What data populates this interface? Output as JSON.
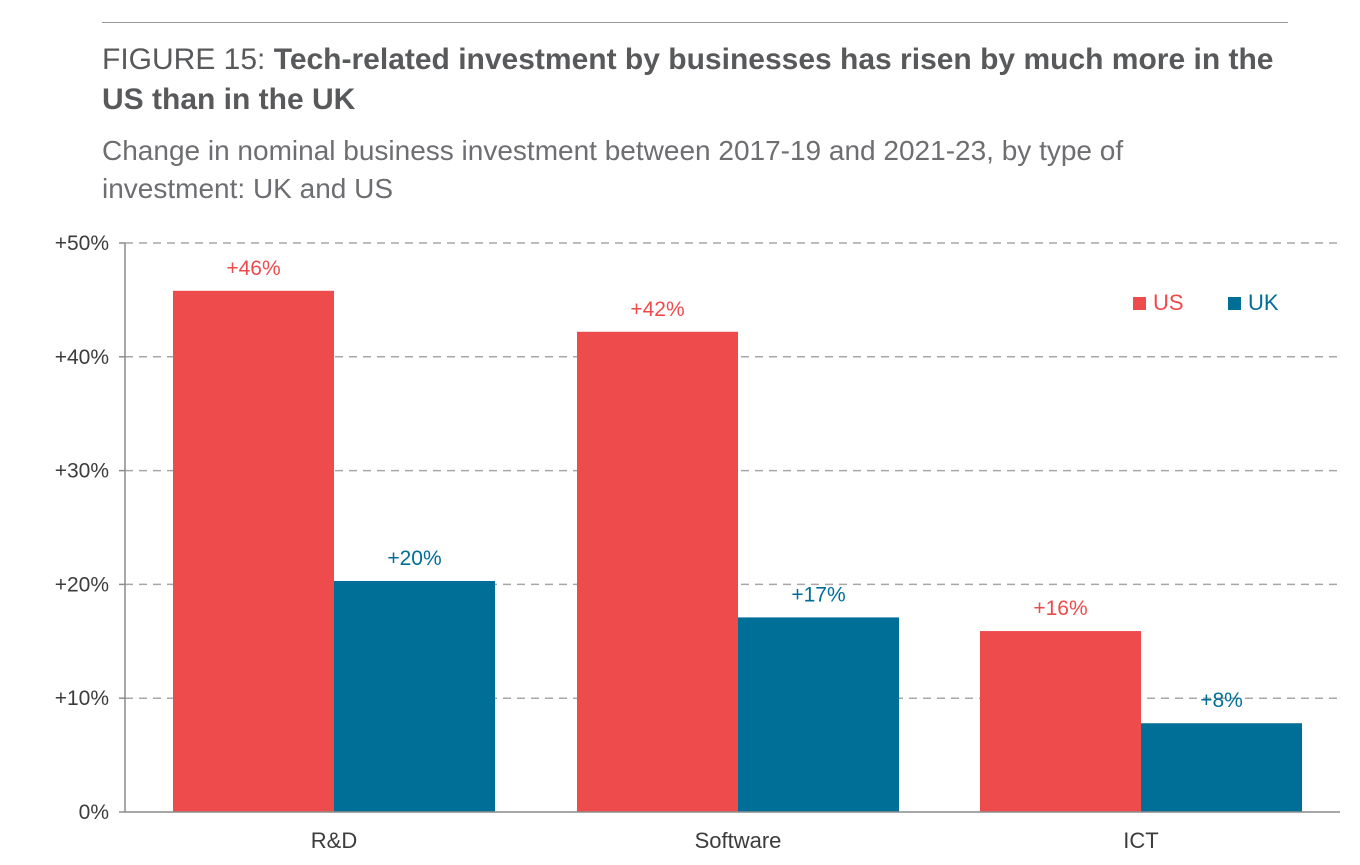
{
  "header": {
    "figure_label": "FIGURE 15:",
    "title_bold": "Tech-related investment by businesses has risen by much more in the US than in the UK"
  },
  "subtitle": "Change in nominal business investment between 2017-19 and 2021-23, by type of investment: UK and US",
  "colors": {
    "US": "#ee4b4d",
    "UK": "#006f98",
    "grid": "#a7a7a7",
    "axis": "#8c8c8c"
  },
  "chart_data": {
    "type": "bar",
    "title": "Tech-related investment by businesses has risen by much more in the US than in the UK",
    "subtitle": "Change in nominal business investment between 2017-19 and 2021-23, by type of investment: UK and US",
    "categories": [
      "R&D",
      "Software",
      "ICT"
    ],
    "series": [
      {
        "name": "US",
        "color": "#ee4b4d",
        "values": [
          45.8,
          42.2,
          15.9
        ],
        "labels": [
          "+46%",
          "+42%",
          "+16%"
        ]
      },
      {
        "name": "UK",
        "color": "#006f98",
        "values": [
          20.3,
          17.1,
          7.8
        ],
        "labels": [
          "+20%",
          "+17%",
          "+8%"
        ]
      }
    ],
    "ylim": [
      0,
      50
    ],
    "yticks": [
      0,
      10,
      20,
      30,
      40,
      50
    ],
    "ytick_labels": [
      "0%",
      "+10%",
      "+20%",
      "+30%",
      "+40%",
      "+50%"
    ],
    "xlabel": "",
    "ylabel": "",
    "grid": true,
    "legend_position": "top-right"
  }
}
